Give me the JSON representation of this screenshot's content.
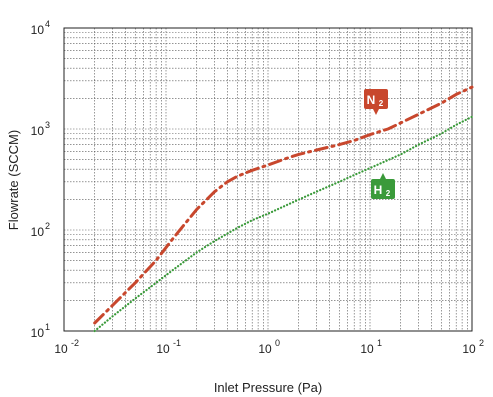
{
  "chart_data": {
    "type": "line",
    "xlabel": "Inlet Pressure (Pa)",
    "ylabel": "Flowrate (SCCM)",
    "x_scale": "log",
    "y_scale": "log",
    "xlim": [
      0.01,
      100
    ],
    "ylim": [
      10,
      10000
    ],
    "x_ticks": [
      {
        "base": "10",
        "exp": "-2",
        "value": 0.01
      },
      {
        "base": "10",
        "exp": "-1",
        "value": 0.1
      },
      {
        "base": "10",
        "exp": "0",
        "value": 1
      },
      {
        "base": "10",
        "exp": "1",
        "value": 10
      },
      {
        "base": "10",
        "exp": "2",
        "value": 100
      }
    ],
    "y_ticks": [
      {
        "base": "10",
        "exp": "1",
        "value": 10
      },
      {
        "base": "10",
        "exp": "2",
        "value": 100
      },
      {
        "base": "10",
        "exp": "3",
        "value": 1000
      },
      {
        "base": "10",
        "exp": "4",
        "value": 10000
      }
    ],
    "grid": true,
    "series": [
      {
        "label_main": "N",
        "label_sub": "2",
        "color": "#c8472d",
        "line_style": "dash-dot",
        "x": [
          0.02,
          0.03,
          0.05,
          0.08,
          0.12,
          0.2,
          0.3,
          0.4,
          0.5,
          0.7,
          1,
          1.5,
          2,
          3,
          5,
          7,
          10,
          15,
          20,
          30,
          50,
          70,
          100
        ],
        "y": [
          12,
          18,
          30,
          50,
          85,
          160,
          240,
          300,
          340,
          390,
          440,
          510,
          560,
          620,
          700,
          770,
          880,
          1000,
          1150,
          1400,
          1800,
          2200,
          2600
        ]
      },
      {
        "label_main": "H",
        "label_sub": "2",
        "color": "#3a9a3a",
        "line_style": "dotted",
        "x": [
          0.02,
          0.03,
          0.05,
          0.08,
          0.12,
          0.2,
          0.3,
          0.5,
          0.7,
          1,
          2,
          3,
          5,
          7,
          10,
          20,
          30,
          50,
          70,
          100
        ],
        "y": [
          10,
          14,
          21,
          30,
          41,
          60,
          78,
          105,
          125,
          145,
          200,
          240,
          300,
          350,
          410,
          560,
          700,
          900,
          1100,
          1320
        ]
      }
    ]
  },
  "colors": {
    "background": "#ffffff",
    "grid": "#555555",
    "frame": "#222222"
  }
}
